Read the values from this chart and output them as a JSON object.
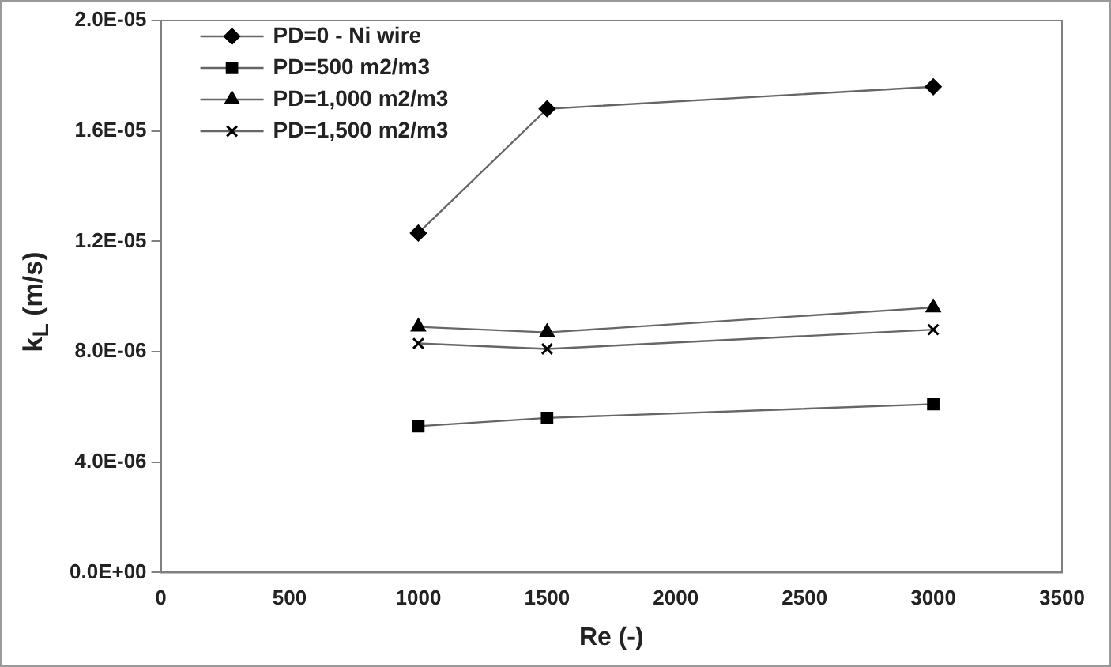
{
  "chart_data": {
    "type": "line",
    "xlabel": "Re (-)",
    "ylabel": "k$_{L}$ (m/s)",
    "x": [
      1000,
      1500,
      3000
    ],
    "series": [
      {
        "name": "PD=0 - Ni wire",
        "color": "#000000",
        "marker": "diamond",
        "values": [
          1.23e-05,
          1.68e-05,
          1.76e-05
        ]
      },
      {
        "name": "PD=500 m2/m3",
        "color": "#000000",
        "marker": "square",
        "values": [
          5.3e-06,
          5.6e-06,
          6.1e-06
        ]
      },
      {
        "name": "PD=1,000 m2/m3",
        "color": "#000000",
        "marker": "triangle",
        "values": [
          8.9e-06,
          8.7e-06,
          9.6e-06
        ]
      },
      {
        "name": "PD=1,500 m2/m3",
        "color": "#000000",
        "marker": "cross",
        "values": [
          8.3e-06,
          8.1e-06,
          8.8e-06
        ]
      }
    ],
    "xlim": [
      0,
      3500
    ],
    "xticks": [
      0,
      500,
      1000,
      1500,
      2000,
      2500,
      3000,
      3500
    ],
    "ylim": [
      0,
      2e-05
    ],
    "yticks": [
      {
        "value": 0,
        "label": "0.0E+00"
      },
      {
        "value": 4e-06,
        "label": "4.0E-06"
      },
      {
        "value": 8e-06,
        "label": "8.0E-06"
      },
      {
        "value": 1.2e-05,
        "label": "1.2E-05"
      },
      {
        "value": 1.6e-05,
        "label": "1.6E-05"
      },
      {
        "value": 2e-05,
        "label": "2.0E-05"
      }
    ],
    "legend": "top left"
  }
}
